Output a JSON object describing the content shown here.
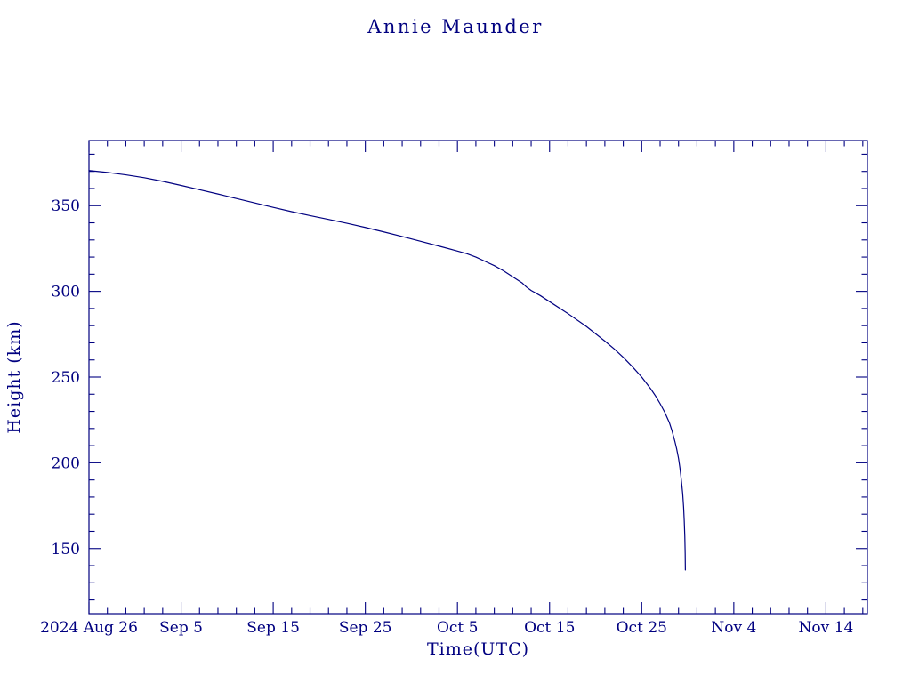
{
  "title": "Annie Maunder",
  "colors": {
    "ink": "#000080",
    "line": "#000080",
    "background": "#ffffff"
  },
  "chart_data": {
    "type": "line",
    "title": "Annie Maunder",
    "xlabel": "Time(UTC)",
    "ylabel": "Height (km)",
    "x_unit": "days since 2024 Aug 26",
    "xlim": [
      0,
      84.5
    ],
    "ylim": [
      112,
      388
    ],
    "x_ticks": [
      {
        "pos": 0,
        "label": "2024 Aug 26"
      },
      {
        "pos": 10,
        "label": "Sep 5"
      },
      {
        "pos": 20,
        "label": "Sep 15"
      },
      {
        "pos": 30,
        "label": "Sep 25"
      },
      {
        "pos": 40,
        "label": "Oct 5"
      },
      {
        "pos": 50,
        "label": "Oct 15"
      },
      {
        "pos": 60,
        "label": "Oct 25"
      },
      {
        "pos": 70,
        "label": "Nov 4"
      },
      {
        "pos": 80,
        "label": "Nov 14"
      }
    ],
    "x_minor_step": 2,
    "y_ticks": [
      150,
      200,
      250,
      300,
      350
    ],
    "y_minor_step": 10,
    "grid": false,
    "legend": "none",
    "series": [
      {
        "name": "height",
        "x": [
          0,
          2,
          4,
          6,
          8,
          10,
          12,
          14,
          16,
          18,
          20,
          22,
          24,
          26,
          28,
          30,
          32,
          34,
          36,
          38,
          40,
          41,
          42,
          43,
          44,
          45,
          46,
          47,
          47.5,
          48,
          49,
          50,
          52,
          54,
          56,
          57,
          58,
          59,
          60,
          60.5,
          61,
          61.5,
          62,
          62.5,
          63,
          63.3,
          63.6,
          63.8,
          64.0,
          64.15,
          64.3,
          64.45,
          64.55,
          64.62,
          64.68,
          64.72,
          64.74
        ],
        "y": [
          370.5,
          369.4,
          368.0,
          366.3,
          364.2,
          361.8,
          359.3,
          356.8,
          354.2,
          351.6,
          349.0,
          346.5,
          344.2,
          342.0,
          339.7,
          337.3,
          334.7,
          332.0,
          329.2,
          326.4,
          323.5,
          322.0,
          320.0,
          317.5,
          315.0,
          312.0,
          308.5,
          305.0,
          302.5,
          300.5,
          297.5,
          294.0,
          287.0,
          279.5,
          271.0,
          266.5,
          261.5,
          256.0,
          250.0,
          246.5,
          243.0,
          239.0,
          234.5,
          229.5,
          223.5,
          218.5,
          212.5,
          208.0,
          202.5,
          197.0,
          190.0,
          182.0,
          174.0,
          166.0,
          157.0,
          147.0,
          137.5
        ]
      }
    ]
  }
}
